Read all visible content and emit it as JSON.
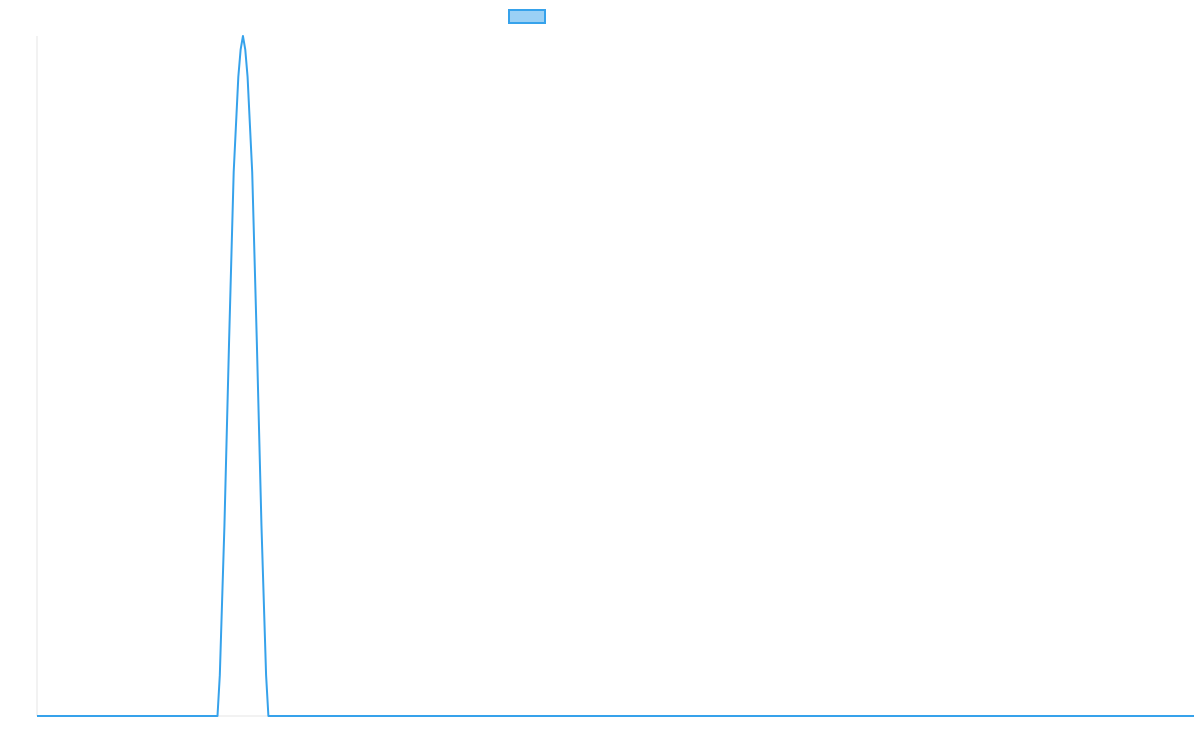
{
  "chart_data": {
    "type": "line",
    "title": "",
    "xlabel": "",
    "ylabel": "",
    "grid": false,
    "legend_placement": "top-center",
    "xlim": [
      0,
      100
    ],
    "ylim": [
      0,
      1
    ],
    "series": [
      {
        "name": "",
        "color": "#36a2eb",
        "fill_color": "#9ad0f5",
        "x": [
          0,
          15.6,
          15.8,
          16.2,
          16.6,
          17.0,
          17.4,
          17.6,
          17.8,
          18.0,
          18.2,
          18.6,
          19.0,
          19.4,
          19.8,
          20.0,
          20.2,
          100
        ],
        "values": [
          0,
          0,
          0.06,
          0.28,
          0.55,
          0.8,
          0.94,
          0.98,
          1.0,
          0.98,
          0.94,
          0.8,
          0.55,
          0.28,
          0.06,
          0,
          0,
          0
        ]
      }
    ]
  }
}
